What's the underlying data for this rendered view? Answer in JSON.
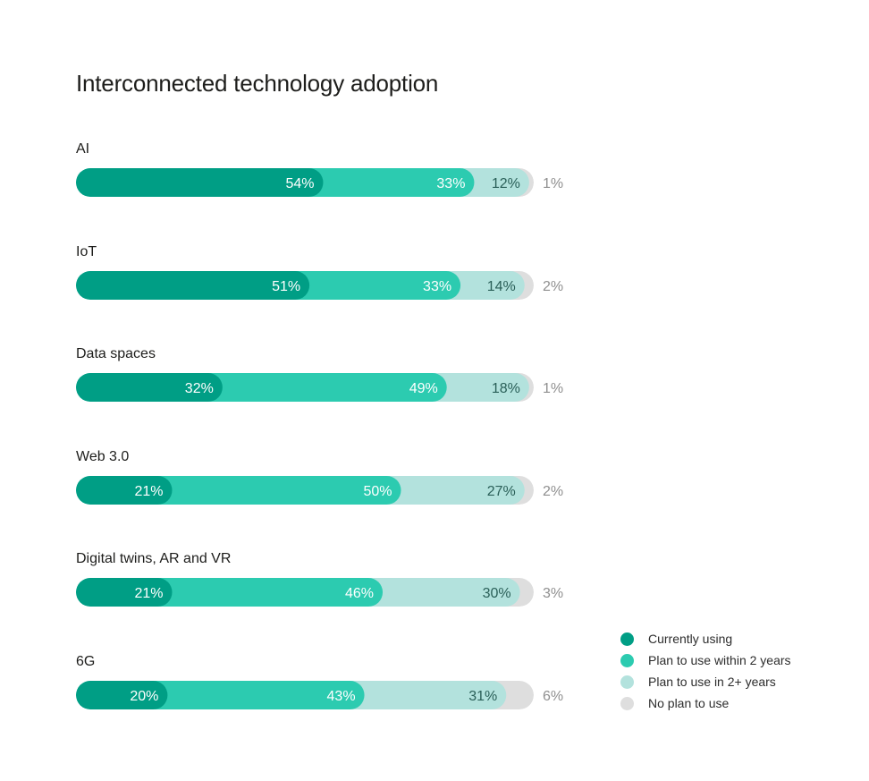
{
  "chart_data": {
    "type": "bar",
    "orientation": "horizontal",
    "stacked": true,
    "normalized": true,
    "title": "Interconnected technology adoption",
    "categories": [
      "AI",
      "IoT",
      "Data spaces",
      "Web 3.0",
      "Digital twins, AR and VR",
      "6G"
    ],
    "series": [
      {
        "name": "Currently using",
        "color": "#009e85",
        "values": [
          54,
          51,
          32,
          21,
          21,
          20
        ]
      },
      {
        "name": "Plan to use within 2 years",
        "color": "#2ccbb0",
        "values": [
          33,
          33,
          49,
          50,
          46,
          43
        ]
      },
      {
        "name": "Plan to use in 2+ years",
        "color": "#b3e2dd",
        "values": [
          12,
          14,
          18,
          27,
          30,
          31
        ]
      },
      {
        "name": "No plan to use",
        "color": "#dedede",
        "values": [
          1,
          2,
          1,
          2,
          3,
          6
        ]
      }
    ],
    "value_suffix": "%",
    "legend_position": "bottom-right",
    "grid": false
  },
  "colors": {
    "label_light": "#ffffff",
    "label_dark": "#2a5f58",
    "label_outside": "#8f8f8f"
  }
}
